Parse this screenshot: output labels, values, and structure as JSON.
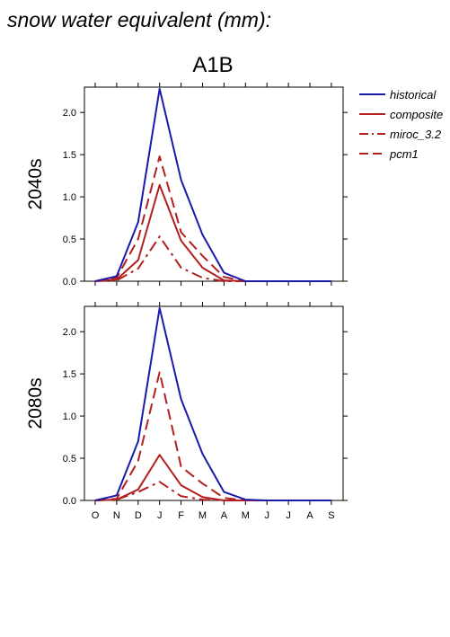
{
  "figure": {
    "title": "snow water equivalent (mm):",
    "scenario": "A1B"
  },
  "chart_data": [
    {
      "type": "line",
      "row_label": "2040s",
      "categories": [
        "O",
        "N",
        "D",
        "J",
        "F",
        "M",
        "A",
        "M",
        "J",
        "J",
        "A",
        "S"
      ],
      "ylim": [
        0,
        2.3
      ],
      "yticks": [
        "0.0",
        "0.5",
        "1.0",
        "1.5",
        "2.0"
      ],
      "grid": false,
      "legend": "right",
      "series": [
        {
          "name": "historical",
          "color": "#1a1aaa",
          "dash": "solid",
          "values": [
            0,
            0.06,
            0.7,
            2.28,
            1.2,
            0.55,
            0.1,
            0,
            0,
            0,
            0,
            0
          ]
        },
        {
          "name": "composite",
          "color": "#b41e1e",
          "dash": "solid",
          "values": [
            0,
            0.02,
            0.25,
            1.14,
            0.48,
            0.16,
            0.01,
            0,
            0,
            0,
            0,
            0
          ]
        },
        {
          "name": "miroc_3.2",
          "color": "#b41e1e",
          "dash": "dashdot",
          "values": [
            0,
            0.01,
            0.15,
            0.53,
            0.16,
            0.04,
            0,
            0,
            0,
            0,
            0,
            0
          ]
        },
        {
          "name": "pcm1",
          "color": "#b41e1e",
          "dash": "dashed",
          "values": [
            0,
            0.04,
            0.5,
            1.48,
            0.58,
            0.3,
            0.05,
            0,
            0,
            0,
            0,
            0
          ]
        }
      ]
    },
    {
      "type": "line",
      "row_label": "2080s",
      "categories": [
        "O",
        "N",
        "D",
        "J",
        "F",
        "M",
        "A",
        "M",
        "J",
        "J",
        "A",
        "S"
      ],
      "ylim": [
        0,
        2.3
      ],
      "yticks": [
        "0.0",
        "0.5",
        "1.0",
        "1.5",
        "2.0"
      ],
      "grid": false,
      "legend": "right",
      "series": [
        {
          "name": "historical",
          "color": "#1a1aaa",
          "dash": "solid",
          "values": [
            0,
            0.06,
            0.7,
            2.28,
            1.2,
            0.55,
            0.1,
            0.01,
            0,
            0,
            0,
            0
          ]
        },
        {
          "name": "composite",
          "color": "#b41e1e",
          "dash": "solid",
          "values": [
            0,
            0.01,
            0.13,
            0.54,
            0.18,
            0.04,
            0,
            0,
            0,
            0,
            0,
            0
          ]
        },
        {
          "name": "miroc_3.2",
          "color": "#b41e1e",
          "dash": "dashdot",
          "values": [
            0,
            0.01,
            0.1,
            0.22,
            0.05,
            0.01,
            0,
            0,
            0,
            0,
            0,
            0
          ]
        },
        {
          "name": "pcm1",
          "color": "#b41e1e",
          "dash": "dashed",
          "values": [
            0,
            0.02,
            0.47,
            1.52,
            0.4,
            0.2,
            0.03,
            0,
            0,
            0,
            0,
            0
          ]
        }
      ]
    }
  ]
}
